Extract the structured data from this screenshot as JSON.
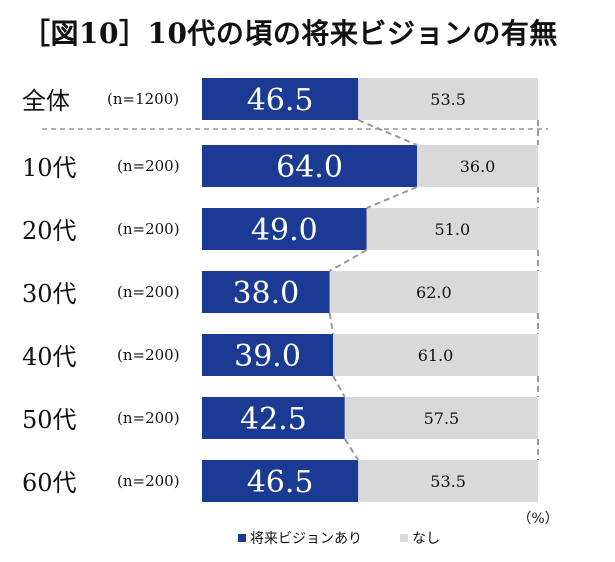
{
  "title": "［図10］10代の頃の将来ビジョンの有無",
  "unit_label": "（%）",
  "chart_data": {
    "type": "bar",
    "orientation": "horizontal",
    "stacked": true,
    "normalized_to": 100,
    "categories": [
      {
        "label": "全体",
        "n": "(n=1200)"
      },
      {
        "label": "10代",
        "n": "(n=200)"
      },
      {
        "label": "20代",
        "n": "(n=200)"
      },
      {
        "label": "30代",
        "n": "(n=200)"
      },
      {
        "label": "40代",
        "n": "(n=200)"
      },
      {
        "label": "50代",
        "n": "(n=200)"
      },
      {
        "label": "60代",
        "n": "(n=200)"
      }
    ],
    "series": [
      {
        "name": "将来ビジョンあり",
        "color": "#1a3a94",
        "label_color": "#ffffff",
        "values": [
          "46.5",
          "64.0",
          "49.0",
          "38.0",
          "39.0",
          "42.5",
          "46.5"
        ]
      },
      {
        "name": "なし",
        "color": "#d9d9d9",
        "label_color": "#111111",
        "values": [
          "53.5",
          "36.0",
          "51.0",
          "62.0",
          "61.0",
          "57.5",
          "53.5"
        ]
      }
    ],
    "legend_position": "bottom",
    "grid": false
  }
}
